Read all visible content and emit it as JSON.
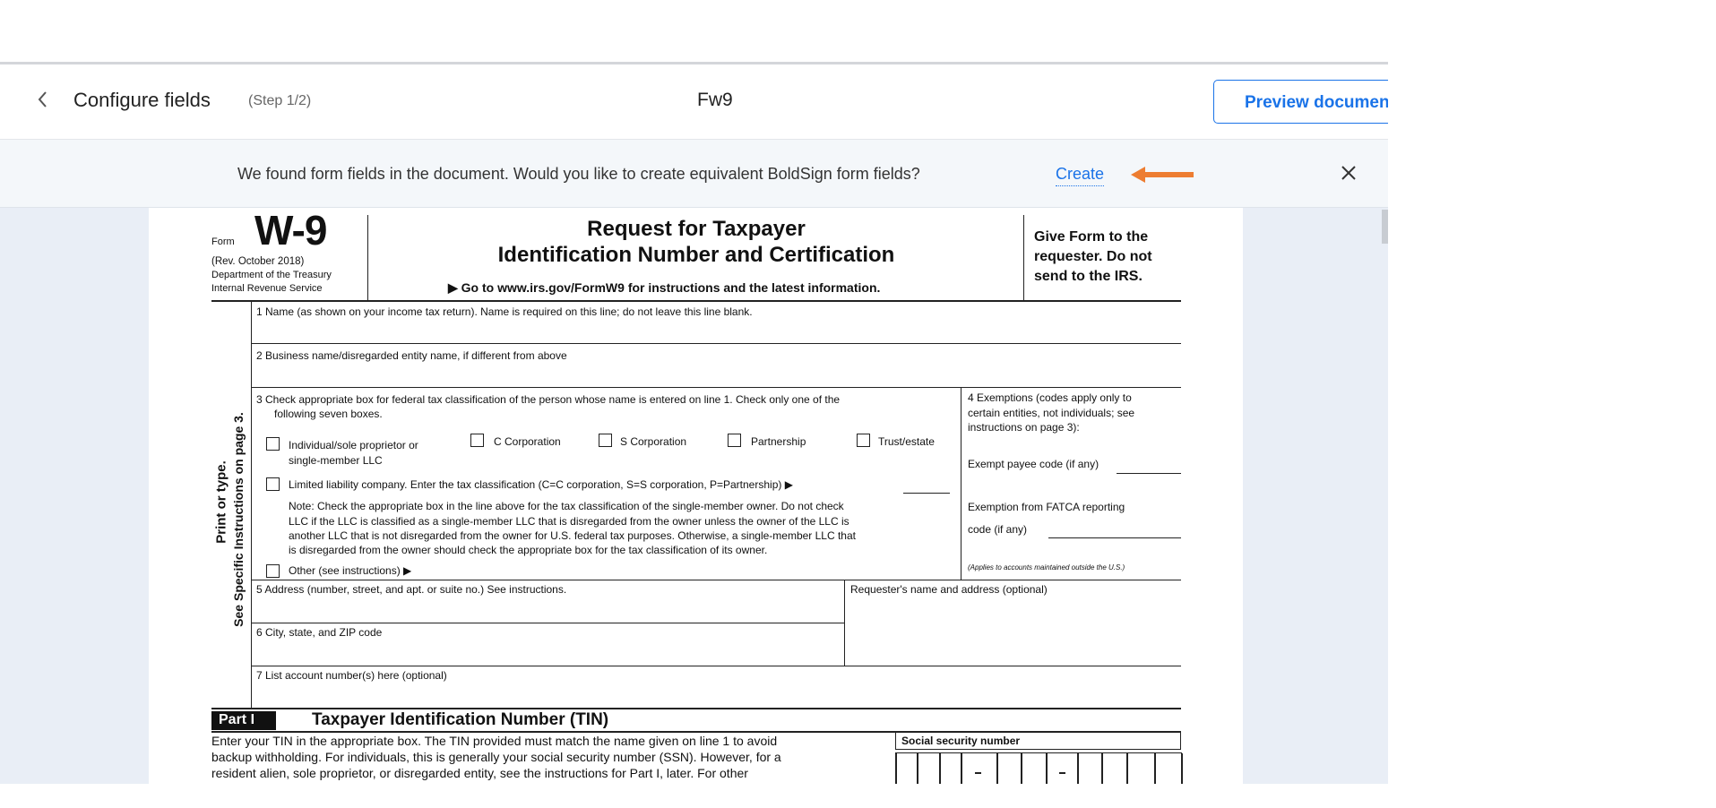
{
  "header": {
    "title": "Configure fields",
    "step": "(Step 1/2)",
    "document_name": "Fw9",
    "preview_button": "Preview document"
  },
  "banner": {
    "message": "We found form fields in the document. Would you like to create equivalent BoldSign form fields?",
    "create_link": "Create",
    "accent": "#1a73e8",
    "arrow_color": "#ed7d31"
  },
  "form": {
    "form_label": "Form",
    "form_number": "W-9",
    "rev": "(Rev. October 2018)",
    "dept": "Department of the Treasury",
    "irs": "Internal Revenue Service",
    "title1": "Request for Taxpayer",
    "title2": "Identification Number and Certification",
    "goto": "▶ Go to www.irs.gov/FormW9 for instructions and the latest information.",
    "give1": "Give Form to the",
    "give2": "requester. Do not",
    "give3": "send to the IRS.",
    "side1": "Print or type.",
    "side2": "See Specific Instructions on page 3.",
    "line1": "1  Name (as shown on your income tax return). Name is required on this line; do not leave this line blank.",
    "line2": "2  Business name/disregarded entity name, if different from above",
    "line3a": "3  Check appropriate box for federal tax classification of the person whose name is entered on line 1. Check only one of the",
    "line3b": "following seven boxes.",
    "options": [
      "Individual/sole proprietor or",
      "C Corporation",
      "S Corporation",
      "Partnership",
      "Trust/estate"
    ],
    "option1b": "single-member LLC",
    "llc": "Limited liability company. Enter the tax classification (C=C corporation, S=S corporation, P=Partnership) ▶",
    "note1": "Note: Check the appropriate box in the line above for the tax classification of the single-member owner.  Do not check",
    "note2": "LLC if the LLC is classified as a single-member LLC that is disregarded from the owner unless the owner of the LLC is",
    "note3": "another LLC that is not disregarded from the owner for U.S. federal tax purposes. Otherwise, a single-member LLC that",
    "note4": "is disregarded from the owner should check the appropriate box for the tax classification of its owner.",
    "other": "Other (see instructions) ▶",
    "ex1": "4  Exemptions (codes apply only to",
    "ex2": "certain entities, not individuals; see",
    "ex3": "instructions on page 3):",
    "exempt_payee": "Exempt payee code (if any)",
    "fatca1": "Exemption from FATCA reporting",
    "fatca2": "code (if any)",
    "applies": "(Applies to accounts maintained outside the U.S.)",
    "line5": "5  Address (number, street, and apt. or suite no.) See instructions.",
    "requester": "Requester's name and address (optional)",
    "line6": "6  City, state, and ZIP code",
    "line7": "7  List account number(s) here (optional)",
    "part1": "Part I",
    "part1_title": "Taxpayer Identification Number (TIN)",
    "tin1": "Enter your TIN in the appropriate box. The TIN provided must match the name given on line 1 to avoid",
    "tin2": "backup withholding. For individuals, this is generally your social security number (SSN). However, for a",
    "tin3": "resident alien, sole proprietor, or disregarded entity, see the instructions for Part I, later. For other",
    "ssn_label": "Social security number"
  }
}
